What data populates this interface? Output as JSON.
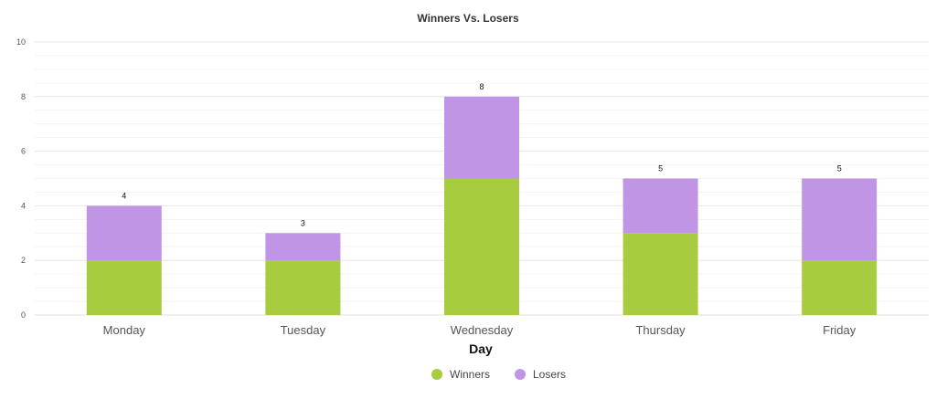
{
  "chart_data": {
    "type": "bar",
    "stacked": true,
    "title": "Winners Vs. Losers",
    "xlabel": "Day",
    "ylabel": "",
    "categories": [
      "Monday",
      "Tuesday",
      "Wednesday",
      "Thursday",
      "Friday"
    ],
    "series": [
      {
        "name": "Winners",
        "values": [
          2,
          2,
          5,
          3,
          2
        ],
        "color": "#a8cc3f"
      },
      {
        "name": "Losers",
        "values": [
          2,
          1,
          3,
          2,
          3
        ],
        "color": "#c095e6"
      }
    ],
    "totals": [
      4,
      3,
      8,
      5,
      5
    ],
    "ylim": [
      0,
      10
    ],
    "yticks": [
      0,
      2,
      4,
      6,
      8,
      10
    ],
    "grid": true,
    "legend_position": "bottom-center"
  }
}
